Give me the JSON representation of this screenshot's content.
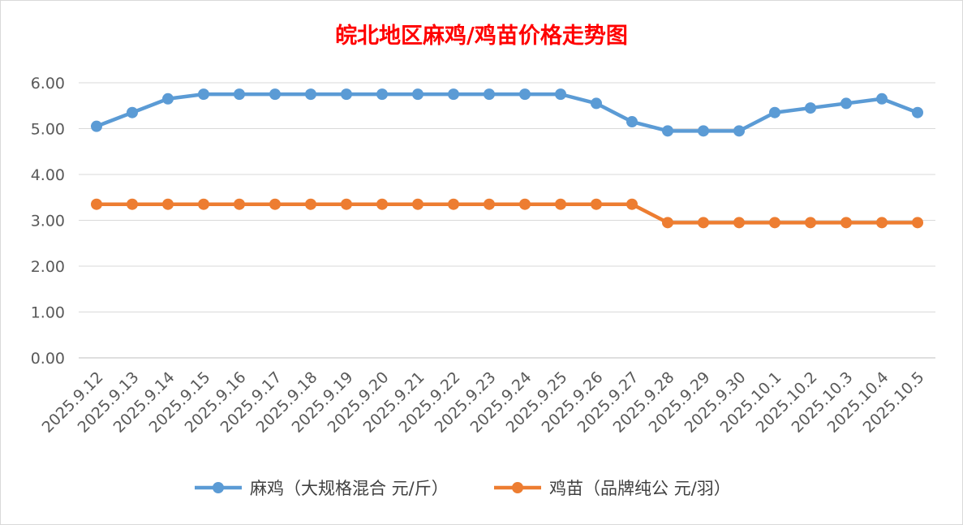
{
  "chart_data": {
    "type": "line",
    "title": "皖北地区麻鸡/鸡苗价格走势图",
    "categories": [
      "2025.9.12",
      "2025.9.13",
      "2025.9.14",
      "2025.9.15",
      "2025.9.16",
      "2025.9.17",
      "2025.9.18",
      "2025.9.19",
      "2025.9.20",
      "2025.9.21",
      "2025.9.22",
      "2025.9.23",
      "2025.9.24",
      "2025.9.25",
      "2025.9.26",
      "2025.9.27",
      "2025.9.28",
      "2025.9.29",
      "2025.9.30",
      "2025.10.1",
      "2025.10.2",
      "2025.10.3",
      "2025.10.4",
      "2025.10.5"
    ],
    "yticks": [
      "0.00",
      "1.00",
      "2.00",
      "3.00",
      "4.00",
      "5.00",
      "6.00"
    ],
    "ylim": [
      0,
      6
    ],
    "grid": true,
    "legend_position": "bottom",
    "series": [
      {
        "name": "麻鸡（大规格混合 元/斤）",
        "color": "#5b9bd5",
        "values": [
          5.05,
          5.35,
          5.65,
          5.75,
          5.75,
          5.75,
          5.75,
          5.75,
          5.75,
          5.75,
          5.75,
          5.75,
          5.75,
          5.75,
          5.55,
          5.15,
          4.95,
          4.95,
          4.95,
          5.35,
          5.45,
          5.55,
          5.65,
          5.35
        ]
      },
      {
        "name": "鸡苗（品牌纯公 元/羽）",
        "color": "#ed7d31",
        "values": [
          3.35,
          3.35,
          3.35,
          3.35,
          3.35,
          3.35,
          3.35,
          3.35,
          3.35,
          3.35,
          3.35,
          3.35,
          3.35,
          3.35,
          3.35,
          3.35,
          2.95,
          2.95,
          2.95,
          2.95,
          2.95,
          2.95,
          2.95,
          2.95
        ]
      }
    ]
  }
}
